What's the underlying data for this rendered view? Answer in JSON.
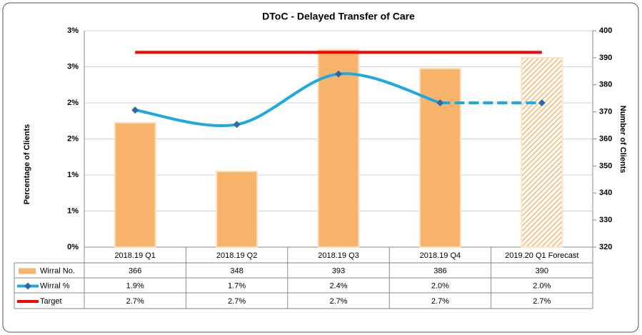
{
  "chart_data": {
    "type": "combo",
    "title": "DToC - Delayed Transfer of Care",
    "ylabel": "Percentage of Clients",
    "y2label": "Number of Clients",
    "categories": [
      "2018.19 Q1",
      "2018.19 Q2",
      "2018.19 Q3",
      "2018.19 Q4",
      "2019.20 Q1 Forecast"
    ],
    "ylim": [
      0,
      3
    ],
    "yticks": [
      {
        "value": 0,
        "label": "0%"
      },
      {
        "value": 0.5,
        "label": "1%"
      },
      {
        "value": 1,
        "label": "1%"
      },
      {
        "value": 1.5,
        "label": "2%"
      },
      {
        "value": 2,
        "label": "2%"
      },
      {
        "value": 2.5,
        "label": "3%"
      },
      {
        "value": 3,
        "label": "3%"
      }
    ],
    "y2lim": [
      320,
      400
    ],
    "y2ticks": [
      320,
      330,
      340,
      350,
      360,
      370,
      380,
      390,
      400
    ],
    "grid": true,
    "series": [
      {
        "name": "Wirral No.",
        "type": "bar",
        "axis": "y2",
        "color": "#f9b46b",
        "values": [
          366,
          348,
          393,
          386,
          390
        ]
      },
      {
        "name": "Wirral %",
        "type": "line",
        "color": "#1fa9e1",
        "marker_color": "#2f6aa3",
        "values": [
          1.9,
          1.7,
          2.4,
          2.0,
          2.0
        ],
        "value_labels": [
          "1.9%",
          "1.7%",
          "2.4%",
          "2.0%",
          "2.0%"
        ]
      },
      {
        "name": "Target",
        "type": "line",
        "color": "#ff0000",
        "values": [
          2.7,
          2.7,
          2.7,
          2.7,
          2.7
        ],
        "value_labels": [
          "2.7%",
          "2.7%",
          "2.7%",
          "2.7%",
          "2.7%"
        ]
      }
    ]
  }
}
